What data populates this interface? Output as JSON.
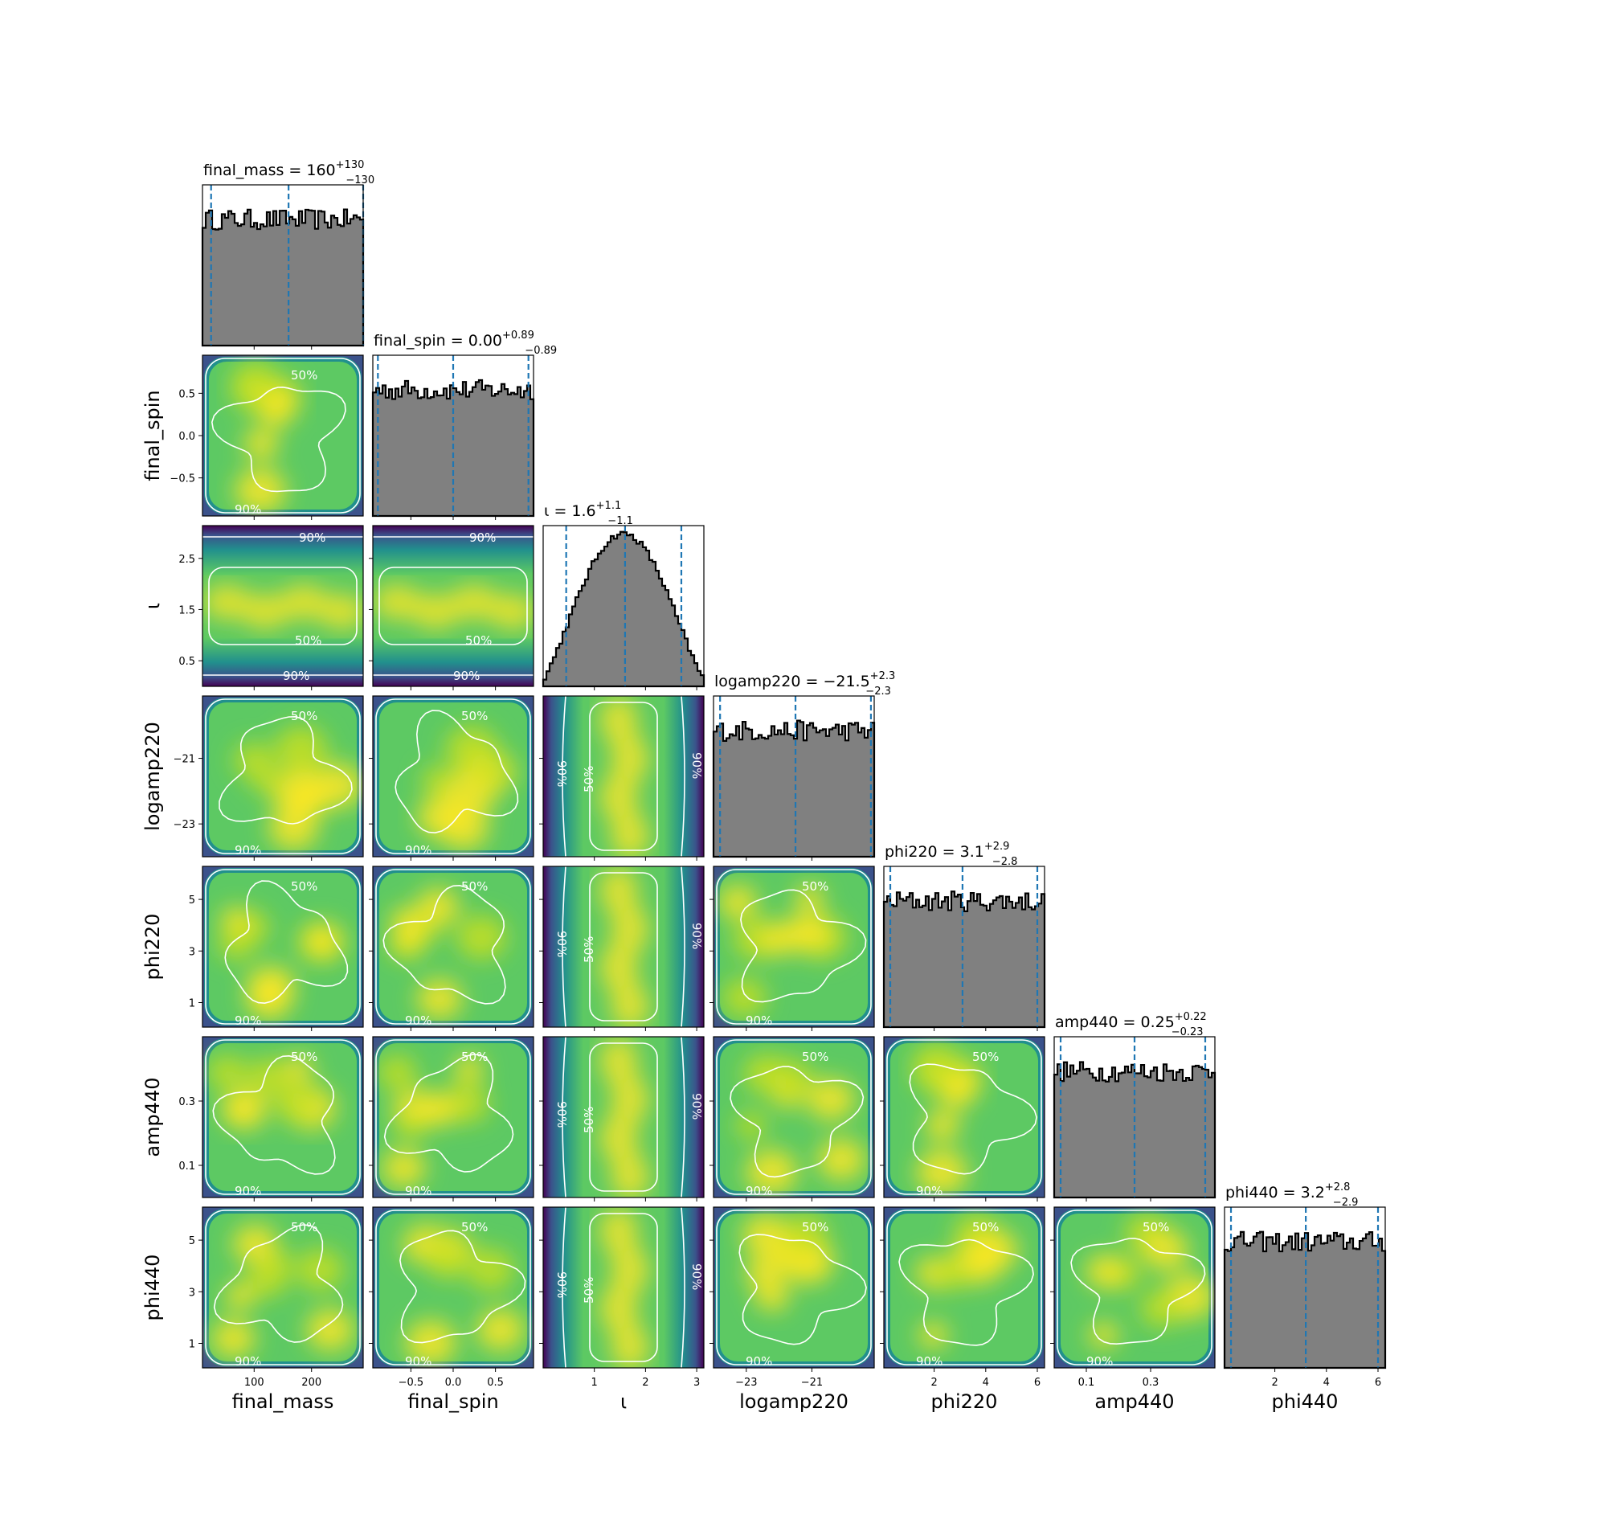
{
  "chart_data": {
    "type": "corner",
    "parameters": [
      {
        "name": "final_mass",
        "label": "final_mass",
        "range": [
          10,
          290
        ],
        "ticks": [
          100,
          200
        ],
        "tick_labels": [
          "100",
          "200"
        ],
        "title": {
          "lhs": "final_mass = 160",
          "plus": "+130",
          "minus": "−130"
        },
        "quantiles": [
          25,
          160,
          290
        ]
      },
      {
        "name": "final_spin",
        "label": "final_spin",
        "range": [
          -0.95,
          0.95
        ],
        "ticks": [
          -0.5,
          0.0,
          0.5
        ],
        "tick_labels": [
          "−0.5",
          "0.0",
          "0.5"
        ],
        "title": {
          "lhs": "final_spin = 0.00",
          "plus": "+0.89",
          "minus": "−0.89"
        },
        "quantiles": [
          -0.89,
          0.0,
          0.89
        ]
      },
      {
        "name": "iota",
        "label": "ι",
        "range": [
          0,
          3.14
        ],
        "ticks": [
          1,
          2,
          3
        ],
        "tick_labels": [
          "1",
          "2",
          "3"
        ],
        "title": {
          "lhs": "ι = 1.6",
          "plus": "+1.1",
          "minus": "−1.1"
        },
        "quantiles": [
          0.45,
          1.6,
          2.7
        ]
      },
      {
        "name": "logamp220",
        "label": "logamp220",
        "range": [
          -24,
          -19.1
        ],
        "ticks": [
          -23,
          -21
        ],
        "tick_labels": [
          "−23",
          "−21"
        ],
        "title": {
          "lhs": "logamp220 = −21.5",
          "plus": "+2.3",
          "minus": "−2.3"
        },
        "quantiles": [
          -23.8,
          -21.5,
          -19.2
        ]
      },
      {
        "name": "phi220",
        "label": "phi220",
        "range": [
          0.05,
          6.28
        ],
        "ticks": [
          2,
          4,
          6
        ],
        "tick_labels": [
          "2",
          "4",
          "6"
        ],
        "title": {
          "lhs": "phi220 = 3.1",
          "plus": "+2.9",
          "minus": "−2.8"
        },
        "quantiles": [
          0.3,
          3.1,
          6.0
        ]
      },
      {
        "name": "amp440",
        "label": "amp440",
        "range": [
          0.0,
          0.5
        ],
        "ticks": [
          0.1,
          0.3
        ],
        "tick_labels": [
          "0.1",
          "0.3"
        ],
        "title": {
          "lhs": "amp440 = 0.25",
          "plus": "+0.22",
          "minus": "−0.23"
        },
        "quantiles": [
          0.02,
          0.25,
          0.47
        ]
      },
      {
        "name": "phi440",
        "label": "phi440",
        "range": [
          0.05,
          6.28
        ],
        "ticks": [
          2,
          4,
          6
        ],
        "tick_labels": [
          "2",
          "4",
          "6"
        ],
        "title": {
          "lhs": "phi440 = 3.2",
          "plus": "+2.8",
          "minus": "−2.9"
        },
        "quantiles": [
          0.3,
          3.2,
          6.0
        ]
      }
    ],
    "y_ticks": {
      "final_spin": {
        "values": [
          0.5,
          0.0,
          -0.5
        ],
        "labels": [
          "0.5",
          "0.0",
          "−0.5"
        ]
      },
      "iota": {
        "values": [
          2.5,
          1.5,
          0.5
        ],
        "labels": [
          "2.5",
          "1.5",
          "0.5"
        ]
      },
      "logamp220": {
        "values": [
          -21,
          -23
        ],
        "labels": [
          "−21",
          "−23"
        ]
      },
      "phi220": {
        "values": [
          5,
          3,
          1
        ],
        "labels": [
          "5",
          "3",
          "1"
        ]
      },
      "amp440": {
        "values": [
          0.3,
          0.1
        ],
        "labels": [
          "0.3",
          "0.1"
        ]
      },
      "phi440": {
        "values": [
          5,
          3,
          1
        ],
        "labels": [
          "5",
          "3",
          "1"
        ]
      }
    },
    "contour_levels": [
      "50%",
      "90%"
    ],
    "histogram_shapes": {
      "final_mass": "uniform",
      "final_spin": "uniform",
      "iota": "sine-shaped, peak near 1.6",
      "logamp220": "uniform",
      "phi220": "uniform",
      "amp440": "uniform",
      "phi440": "uniform"
    },
    "colors": {
      "histogram_fill": "#808080",
      "histogram_edge": "#000000",
      "quantile_line": "#1f77b4",
      "density_colormap": [
        "#440154",
        "#3b528b",
        "#21908d",
        "#5dc963",
        "#fde725"
      ],
      "contour_line": "#ffffff"
    }
  }
}
